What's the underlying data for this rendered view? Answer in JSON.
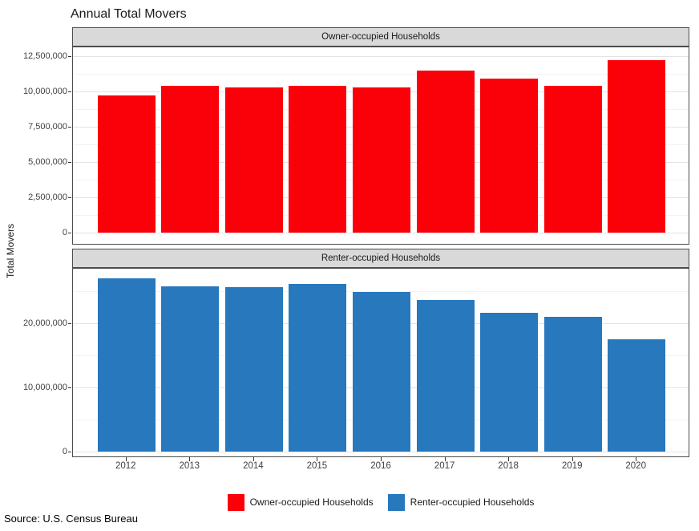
{
  "title": "Annual Total Movers",
  "y_axis_title": "Total Movers",
  "source_note": "Source: U.S. Census Bureau",
  "chart_data": {
    "type": "bar",
    "categories": [
      "2012",
      "2013",
      "2014",
      "2015",
      "2016",
      "2017",
      "2018",
      "2019",
      "2020"
    ],
    "xlabel": "",
    "ylabel": "Total Movers",
    "grid": true,
    "facets": [
      {
        "strip_label": "Owner-occupied Households",
        "color": "#fa0008",
        "values": [
          9700000,
          10400000,
          10300000,
          10400000,
          10300000,
          11500000,
          10900000,
          10400000,
          12200000
        ],
        "ylim": [
          -900000,
          13100000
        ],
        "y_ticks": [
          {
            "value": 0,
            "label": "0"
          },
          {
            "value": 2500000,
            "label": "2,500,000"
          },
          {
            "value": 5000000,
            "label": "5,000,000"
          },
          {
            "value": 7500000,
            "label": "7,500,000"
          },
          {
            "value": 10000000,
            "label": "10,000,000"
          },
          {
            "value": 12500000,
            "label": "12,500,000"
          }
        ]
      },
      {
        "strip_label": "Renter-occupied Households",
        "color": "#2778bd",
        "values": [
          27000000,
          25800000,
          25600000,
          26100000,
          24900000,
          23600000,
          21600000,
          21000000,
          17500000
        ],
        "ylim": [
          -900000,
          28700000
        ],
        "y_ticks": [
          {
            "value": 0,
            "label": "0"
          },
          {
            "value": 10000000,
            "label": "10,000,000"
          },
          {
            "value": 20000000,
            "label": "20,000,000"
          }
        ]
      }
    ],
    "legend": {
      "position": "bottom",
      "entries": [
        {
          "label": "Owner-occupied Households",
          "color": "#fa0008"
        },
        {
          "label": "Renter-occupied Households",
          "color": "#2778bd"
        }
      ]
    }
  },
  "styles": {
    "strip_bg": "#d9d9d9",
    "panel_border": "#4d4d4d",
    "grid_major": "#e3e3e3",
    "grid_minor": "#f2f2f2",
    "tick_text": "#404040"
  }
}
